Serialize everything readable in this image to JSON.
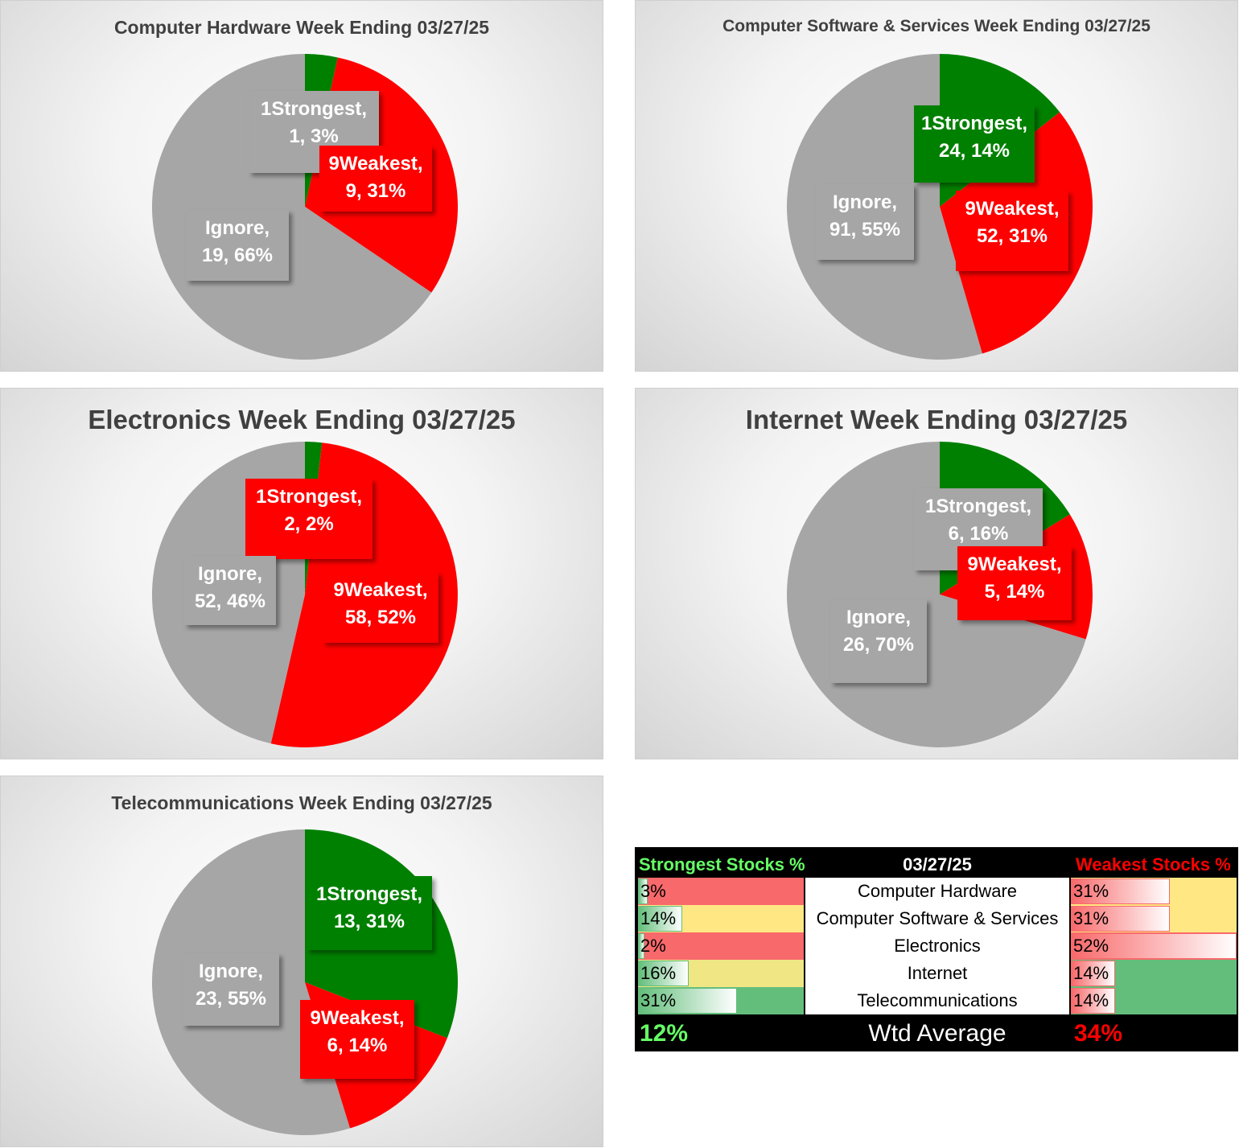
{
  "colors": {
    "strongest": "#008000",
    "weakest": "#ff0000",
    "ignore": "#a6a6a6"
  },
  "chart_data": [
    {
      "type": "pie",
      "title": "Computer Hardware Week Ending 03/27/25",
      "slices": [
        {
          "name": "1Strongest",
          "value": 1,
          "percent": "3%",
          "label_line1": "1Strongest,",
          "label_line2": "1, 3%"
        },
        {
          "name": "9Weakest",
          "value": 9,
          "percent": "31%",
          "label_line1": "9Weakest,",
          "label_line2": "9, 31%"
        },
        {
          "name": "Ignore",
          "value": 19,
          "percent": "66%",
          "label_line1": "Ignore,",
          "label_line2": "19, 66%"
        }
      ]
    },
    {
      "type": "pie",
      "title": "Computer Software & Services Week Ending 03/27/25",
      "slices": [
        {
          "name": "1Strongest",
          "value": 24,
          "percent": "14%",
          "label_line1": "1Strongest,",
          "label_line2": "24, 14%"
        },
        {
          "name": "9Weakest",
          "value": 52,
          "percent": "31%",
          "label_line1": "9Weakest,",
          "label_line2": "52, 31%"
        },
        {
          "name": "Ignore",
          "value": 91,
          "percent": "55%",
          "label_line1": "Ignore,",
          "label_line2": "91, 55%"
        }
      ]
    },
    {
      "type": "pie",
      "title": "Electronics Week Ending 03/27/25",
      "slices": [
        {
          "name": "1Strongest",
          "value": 2,
          "percent": "2%",
          "label_line1": "1Strongest,",
          "label_line2": "2, 2%"
        },
        {
          "name": "9Weakest",
          "value": 58,
          "percent": "52%",
          "label_line1": "9Weakest,",
          "label_line2": "58, 52%"
        },
        {
          "name": "Ignore",
          "value": 52,
          "percent": "46%",
          "label_line1": "Ignore,",
          "label_line2": "52, 46%"
        }
      ]
    },
    {
      "type": "pie",
      "title": "Internet Week Ending 03/27/25",
      "slices": [
        {
          "name": "1Strongest",
          "value": 6,
          "percent": "16%",
          "label_line1": "1Strongest,",
          "label_line2": "6, 16%"
        },
        {
          "name": "9Weakest",
          "value": 5,
          "percent": "14%",
          "label_line1": "9Weakest,",
          "label_line2": "5, 14%"
        },
        {
          "name": "Ignore",
          "value": 26,
          "percent": "70%",
          "label_line1": "Ignore,",
          "label_line2": "26, 70%"
        }
      ]
    },
    {
      "type": "pie",
      "title": "Telecommunications Week Ending 03/27/25",
      "slices": [
        {
          "name": "1Strongest",
          "value": 13,
          "percent": "31%",
          "label_line1": "1Strongest,",
          "label_line2": "13, 31%"
        },
        {
          "name": "9Weakest",
          "value": 6,
          "percent": "14%",
          "label_line1": "9Weakest,",
          "label_line2": "6, 14%"
        },
        {
          "name": "Ignore",
          "value": 23,
          "percent": "55%",
          "label_line1": "Ignore,",
          "label_line2": "23, 55%"
        }
      ]
    }
  ],
  "summary": {
    "strongest_header": "Strongest Stocks %",
    "date_header": "03/27/25",
    "weakest_header": "Weakest Stocks %",
    "bar_max": 0.52,
    "rows": [
      {
        "name": "Computer Hardware",
        "strong": "3%",
        "strong_value": 0.03,
        "weak": "31%",
        "weak_value": 0.31,
        "strong_bg": "#f8696b",
        "weak_bg": "#ffe884"
      },
      {
        "name": "Computer Software & Services",
        "strong": "14%",
        "strong_value": 0.14,
        "weak": "31%",
        "weak_value": 0.31,
        "strong_bg": "#ffe884",
        "weak_bg": "#ffe884"
      },
      {
        "name": "Electronics",
        "strong": "2%",
        "strong_value": 0.02,
        "weak": "52%",
        "weak_value": 0.52,
        "strong_bg": "#f8696b",
        "weak_bg": "#f8696b"
      },
      {
        "name": "Internet",
        "strong": "16%",
        "strong_value": 0.16,
        "weak": "14%",
        "weak_value": 0.14,
        "strong_bg": "#f0e684",
        "weak_bg": "#63be7b"
      },
      {
        "name": "Telecommunications",
        "strong": "31%",
        "strong_value": 0.31,
        "weak": "14%",
        "weak_value": 0.14,
        "strong_bg": "#63be7b",
        "weak_bg": "#63be7b"
      }
    ],
    "wtd_label": "Wtd Average",
    "wtd_strong": "12%",
    "wtd_weak": "34%",
    "header_strong_color": "#66ff66",
    "header_weak_color": "#ff0000"
  }
}
